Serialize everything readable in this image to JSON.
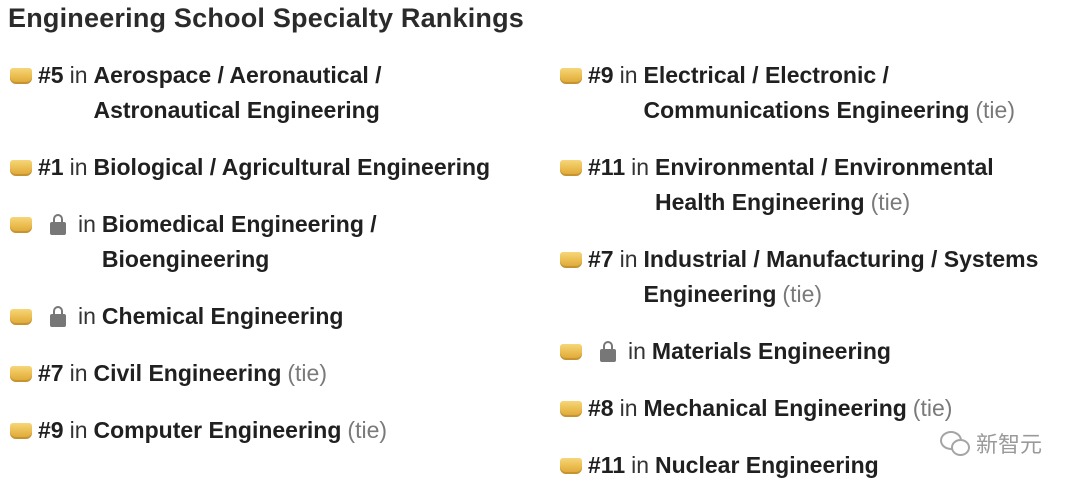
{
  "title": "Engineering School Specialty Rankings",
  "in_label": "in",
  "tie_label": "(tie)",
  "left_column": [
    {
      "rank": "#5",
      "locked": false,
      "lines": [
        "Aerospace / Aeronautical /",
        "Astronautical Engineering"
      ],
      "tie": false
    },
    {
      "rank": "#1",
      "locked": false,
      "lines": [
        "Biological / Agricultural Engineering"
      ],
      "tie": false
    },
    {
      "rank": "",
      "locked": true,
      "lines": [
        "Biomedical Engineering /",
        "Bioengineering"
      ],
      "tie": false
    },
    {
      "rank": "",
      "locked": true,
      "lines": [
        "Chemical Engineering"
      ],
      "tie": false
    },
    {
      "rank": "#7",
      "locked": false,
      "lines": [
        "Civil Engineering"
      ],
      "tie": true
    },
    {
      "rank": "#9",
      "locked": false,
      "lines": [
        "Computer Engineering"
      ],
      "tie": true
    }
  ],
  "right_column": [
    {
      "rank": "#9",
      "locked": false,
      "lines": [
        "Electrical / Electronic /",
        "Communications Engineering"
      ],
      "tie": true
    },
    {
      "rank": "#11",
      "locked": false,
      "lines": [
        "Environmental / Environmental",
        "Health Engineering"
      ],
      "tie": true
    },
    {
      "rank": "#7",
      "locked": false,
      "lines": [
        "Industrial / Manufacturing / Systems",
        "Engineering"
      ],
      "tie": true
    },
    {
      "rank": "",
      "locked": true,
      "lines": [
        "Materials Engineering"
      ],
      "tie": false
    },
    {
      "rank": "#8",
      "locked": false,
      "lines": [
        "Mechanical Engineering"
      ],
      "tie": true
    },
    {
      "rank": "#11",
      "locked": false,
      "lines": [
        "Nuclear Engineering"
      ],
      "tie": false
    }
  ],
  "icons": {
    "medal": "medal-icon",
    "lock": "lock-icon",
    "watermark": "wechat-icon"
  },
  "watermark_text": "新智元"
}
